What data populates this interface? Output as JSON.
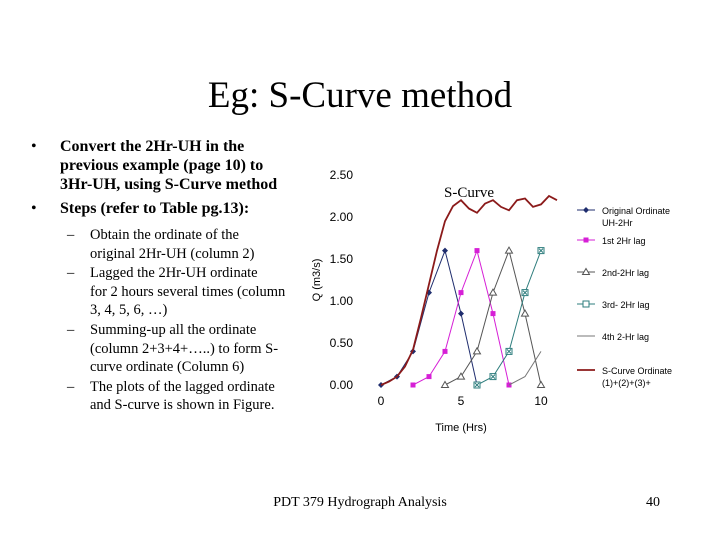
{
  "slide": {
    "title": "Eg: S-Curve method",
    "bullets": [
      {
        "text": [
          "Convert the 2Hr-UH in the",
          "previous example (page 10) to",
          "3Hr-UH, using S-Curve method"
        ]
      },
      {
        "text": [
          "Steps (refer to Table pg.13):"
        ]
      }
    ],
    "subbullets": [
      {
        "text": [
          "Obtain the ordinate of the",
          "original 2Hr-UH (column 2)"
        ]
      },
      {
        "text": [
          "Lagged the 2Hr-UH ordinate",
          "for 2 hours several times (column",
          "3, 4, 5, 6, …)"
        ]
      },
      {
        "text": [
          "Summing-up all the ordinate",
          "(column 2+3+4+…..) to form S-",
          "curve ordinate (Column 6)"
        ]
      },
      {
        "text": [
          "The plots of the lagged ordinate",
          "and S-curve is shown in Figure."
        ]
      }
    ],
    "footer": "PDT 379 Hydrograph Analysis",
    "page_number": "40"
  },
  "chart_data": {
    "type": "line",
    "title": "S-Curve",
    "xlabel": "Time (Hrs)",
    "ylabel": "Q (m3/s)",
    "xlim": [
      -1,
      11.5
    ],
    "ylim": [
      0,
      2.5
    ],
    "xticks": [
      0,
      5,
      10
    ],
    "xtick_labels": [
      "0",
      "5",
      "10"
    ],
    "yticks": [
      0,
      0.5,
      1.0,
      1.5,
      2.0,
      2.5
    ],
    "ytick_labels": [
      "0.00",
      "0.50",
      "1.00",
      "1.50",
      "2.00",
      "2.50"
    ],
    "x": [
      0,
      1,
      2,
      3,
      4,
      5,
      6,
      7,
      8,
      9,
      10
    ],
    "series": [
      {
        "name": "Original Ordinate UH-2Hr",
        "legend": [
          "Original Ordinate",
          "UH-2Hr"
        ],
        "color": "#1f2d6e",
        "marker": "diamond",
        "x": [
          0,
          1,
          2,
          3,
          4,
          5,
          6
        ],
        "values": [
          0.0,
          0.1,
          0.4,
          1.1,
          1.6,
          0.85,
          0.0
        ]
      },
      {
        "name": "1st 2Hr lag",
        "legend": [
          "1st 2Hr lag"
        ],
        "color": "#d61fd6",
        "marker": "square",
        "x": [
          2,
          3,
          4,
          5,
          6,
          7,
          8
        ],
        "values": [
          0.0,
          0.1,
          0.4,
          1.1,
          1.6,
          0.85,
          0.0
        ]
      },
      {
        "name": "2nd-2Hr lag",
        "legend": [
          "2nd-2Hr lag"
        ],
        "color": "#555555",
        "marker": "triangle",
        "x": [
          4,
          5,
          6,
          7,
          8,
          9,
          10
        ],
        "values": [
          0.0,
          0.1,
          0.4,
          1.1,
          1.6,
          0.85,
          0.0
        ]
      },
      {
        "name": "3rd-2Hr lag",
        "legend": [
          "3rd- 2Hr lag"
        ],
        "color": "#2e7d7d",
        "marker": "xsquare",
        "x": [
          6,
          7,
          8,
          9,
          10
        ],
        "values": [
          0.0,
          0.1,
          0.4,
          1.1,
          1.6
        ]
      },
      {
        "name": "4th 2-Hr lag",
        "legend": [
          "4th 2-Hr lag"
        ],
        "color": "#777777",
        "marker": "none",
        "x": [
          8,
          9,
          10
        ],
        "values": [
          0.0,
          0.1,
          0.4
        ]
      },
      {
        "name": "S-Curve Ordinate (1)+(2)+(3)+",
        "legend": [
          "S-Curve Ordinate",
          "(1)+(2)+(3)+"
        ],
        "color": "#8b1a1a",
        "marker": "none",
        "x": [
          0,
          0.5,
          1,
          1.5,
          2,
          2.5,
          3,
          3.5,
          4,
          4.5,
          5,
          5.5,
          6,
          6.5,
          7,
          7.5,
          8,
          8.5,
          9,
          9.5,
          10,
          10.5,
          11
        ],
        "values": [
          0.0,
          0.04,
          0.1,
          0.22,
          0.42,
          0.8,
          1.2,
          1.6,
          1.95,
          2.13,
          2.2,
          2.1,
          2.05,
          2.16,
          2.2,
          2.12,
          2.08,
          2.2,
          2.22,
          2.12,
          2.15,
          2.25,
          2.2
        ]
      }
    ]
  }
}
